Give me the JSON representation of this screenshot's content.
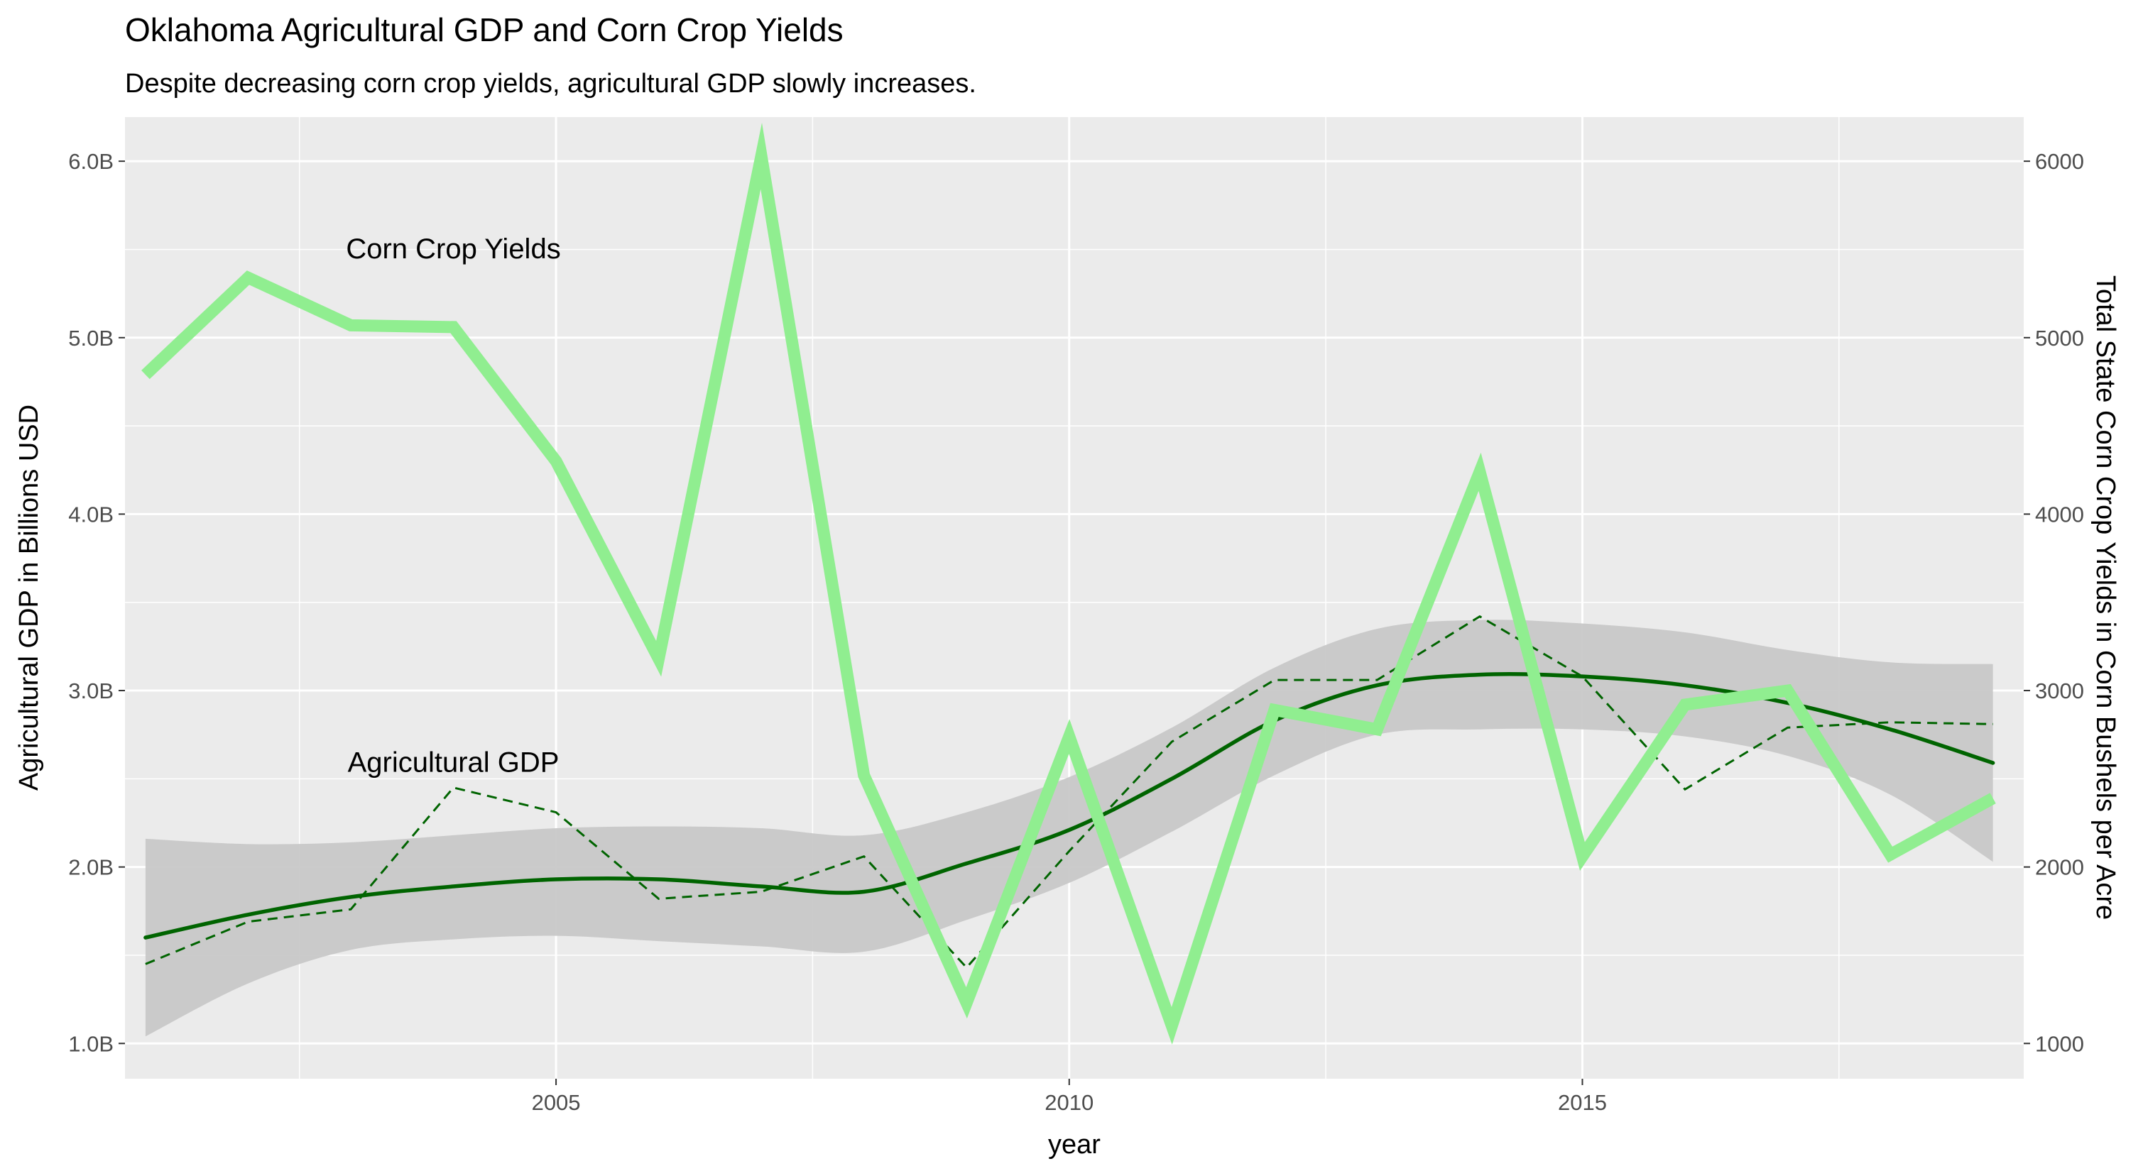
{
  "chart_data": {
    "type": "line",
    "title": "Oklahoma Agricultural GDP and Corn Crop Yields",
    "subtitle": "Despite decreasing corn crop yields, agricultural GDP slowly increases.",
    "xlabel": "year",
    "ylabel_left": "Agricultural GDP in Billions USD",
    "ylabel_right": "Total State Corn Crop Yields in Corn Bushels per Acre",
    "xlim": [
      2000.8,
      2019.3
    ],
    "ylim_left": [
      0.8,
      6.25
    ],
    "ylim_right": [
      800,
      6250
    ],
    "x_ticks": [
      2005,
      2010,
      2015
    ],
    "x_tick_labels": [
      "2005",
      "2010",
      "2015"
    ],
    "y_left_ticks": [
      1.0,
      2.0,
      3.0,
      4.0,
      5.0,
      6.0
    ],
    "y_left_tick_labels": [
      "1.0B",
      "2.0B",
      "3.0B",
      "4.0B",
      "5.0B",
      "6.0B"
    ],
    "y_right_ticks": [
      1000,
      2000,
      3000,
      4000,
      5000,
      6000
    ],
    "y_right_tick_labels": [
      "1000",
      "2000",
      "3000",
      "4000",
      "5000",
      "6000"
    ],
    "grid": true,
    "annotations": [
      {
        "text": "Corn Crop Yields",
        "x": 2004.0,
        "y": 5.45
      },
      {
        "text": "Agricultural GDP",
        "x": 2004.0,
        "y": 2.54
      }
    ],
    "series": [
      {
        "kind": "line",
        "axis": "right",
        "color": "#90EE90",
        "x": [
          2001,
          2002,
          2003,
          2004,
          2005,
          2006,
          2007,
          2008,
          2009,
          2010,
          2011,
          2012,
          2013,
          2014,
          2015,
          2016,
          2017,
          2018,
          2019
        ],
        "values": [
          4790,
          5340,
          5070,
          5060,
          4300,
          3180,
          6030,
          2520,
          1230,
          2740,
          1100,
          2890,
          2780,
          4240,
          2060,
          2920,
          3000,
          2070,
          2390
        ]
      },
      {
        "kind": "dashed-line",
        "axis": "left",
        "color": "#006400",
        "x": [
          2001,
          2002,
          2003,
          2004,
          2005,
          2006,
          2007,
          2008,
          2009,
          2010,
          2011,
          2012,
          2013,
          2014,
          2015,
          2016,
          2017,
          2018,
          2019
        ],
        "values": [
          1.45,
          1.69,
          1.76,
          2.45,
          2.31,
          1.82,
          1.86,
          2.06,
          1.43,
          2.09,
          2.71,
          3.06,
          3.06,
          3.42,
          3.08,
          2.44,
          2.79,
          2.82,
          2.81
        ]
      },
      {
        "kind": "smooth",
        "axis": "left",
        "color": "#006400",
        "band_color": "#C8C8C8",
        "x": [
          2001,
          2002,
          2003,
          2004,
          2005,
          2006,
          2007,
          2008,
          2009,
          2010,
          2011,
          2012,
          2013,
          2014,
          2015,
          2016,
          2017,
          2018,
          2019
        ],
        "values": [
          1.6,
          1.73,
          1.83,
          1.89,
          1.93,
          1.93,
          1.89,
          1.86,
          2.02,
          2.21,
          2.5,
          2.83,
          3.03,
          3.09,
          3.08,
          3.03,
          2.93,
          2.78,
          2.59
        ],
        "lower": [
          1.04,
          1.34,
          1.53,
          1.59,
          1.61,
          1.58,
          1.55,
          1.52,
          1.7,
          1.91,
          2.2,
          2.52,
          2.75,
          2.78,
          2.78,
          2.74,
          2.63,
          2.41,
          2.03
        ],
        "upper": [
          2.16,
          2.13,
          2.14,
          2.18,
          2.22,
          2.23,
          2.22,
          2.18,
          2.31,
          2.51,
          2.79,
          3.13,
          3.35,
          3.4,
          3.38,
          3.33,
          3.23,
          3.16,
          3.15
        ]
      }
    ]
  }
}
